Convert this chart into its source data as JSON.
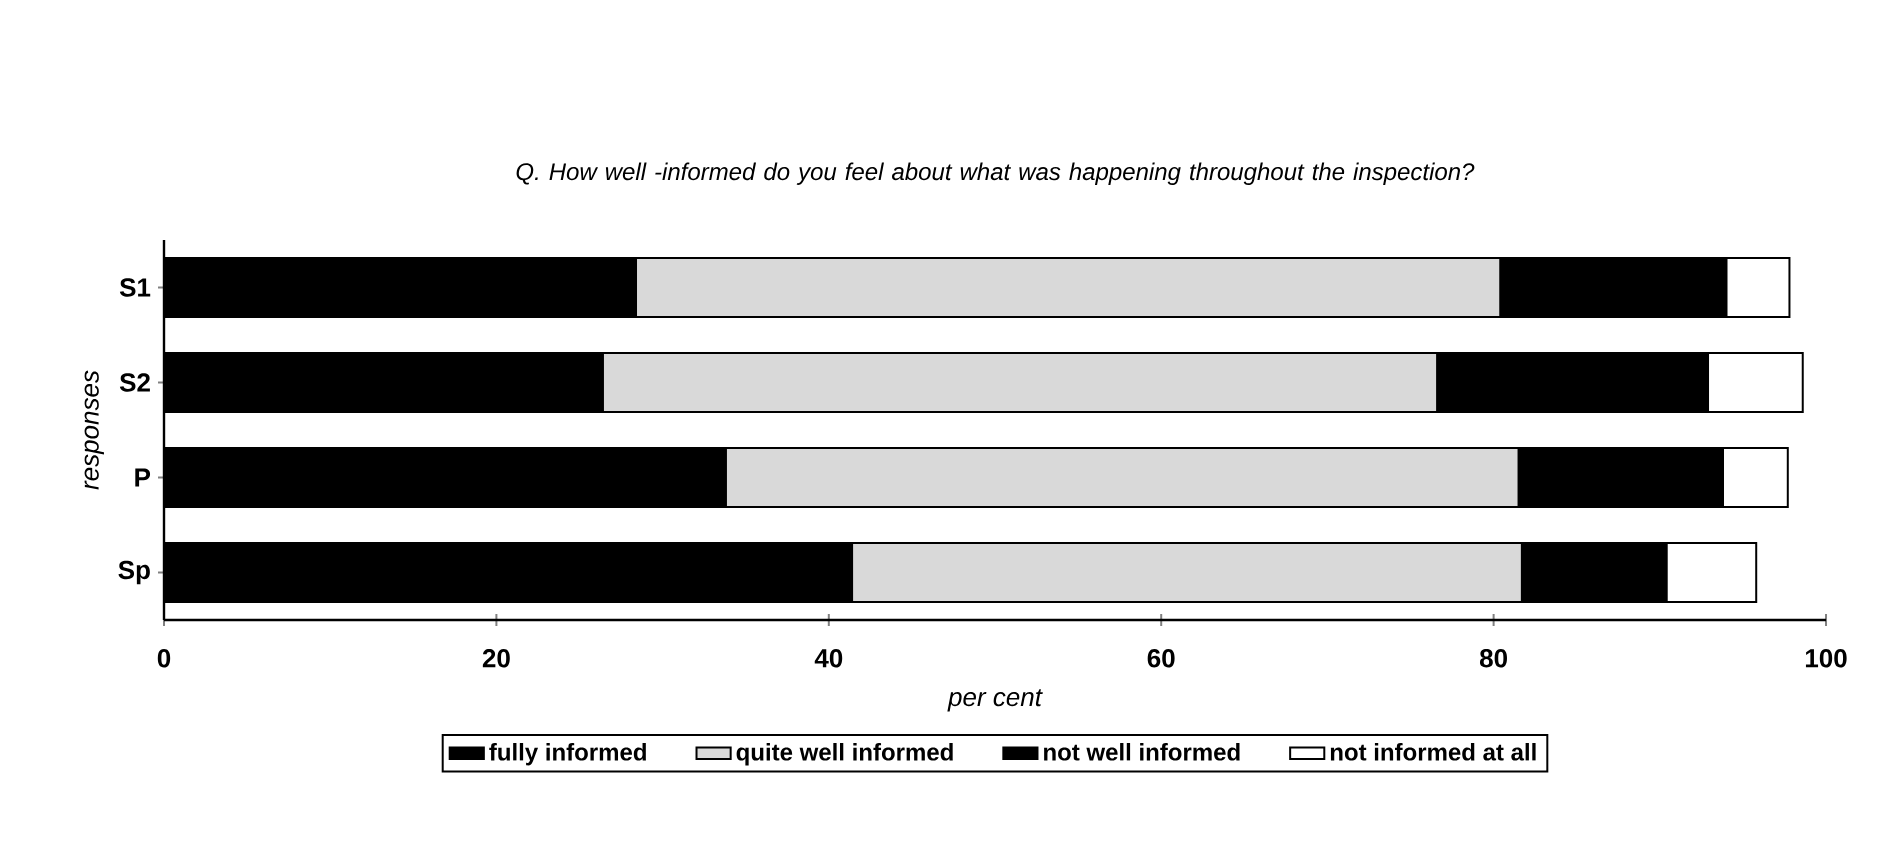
{
  "chart_data": {
    "type": "bar",
    "orientation": "horizontal",
    "stacked": true,
    "title": "Q. How well -informed do you feel about what was happening throughout the inspection?",
    "xlabel": "per cent",
    "ylabel": "responses",
    "categories": [
      "S1",
      "S2",
      "P",
      "Sp"
    ],
    "series": [
      {
        "name": "fully informed",
        "color": "#000000",
        "values": [
          28.4,
          26.4,
          33.8,
          41.4
        ]
      },
      {
        "name": "quite well informed",
        "color": "#d9d9d9",
        "values": [
          52.0,
          50.2,
          47.7,
          40.3
        ]
      },
      {
        "name": "not well informed",
        "color": "#000000",
        "values": [
          13.6,
          16.3,
          12.3,
          8.7
        ]
      },
      {
        "name": "not informed at all",
        "color": "#ffffff",
        "values": [
          3.8,
          5.7,
          3.9,
          5.4
        ]
      }
    ],
    "xlim": [
      0,
      100
    ],
    "xticks": [
      0,
      20,
      40,
      60,
      80,
      100
    ],
    "grid": false,
    "legend": "bottom"
  }
}
